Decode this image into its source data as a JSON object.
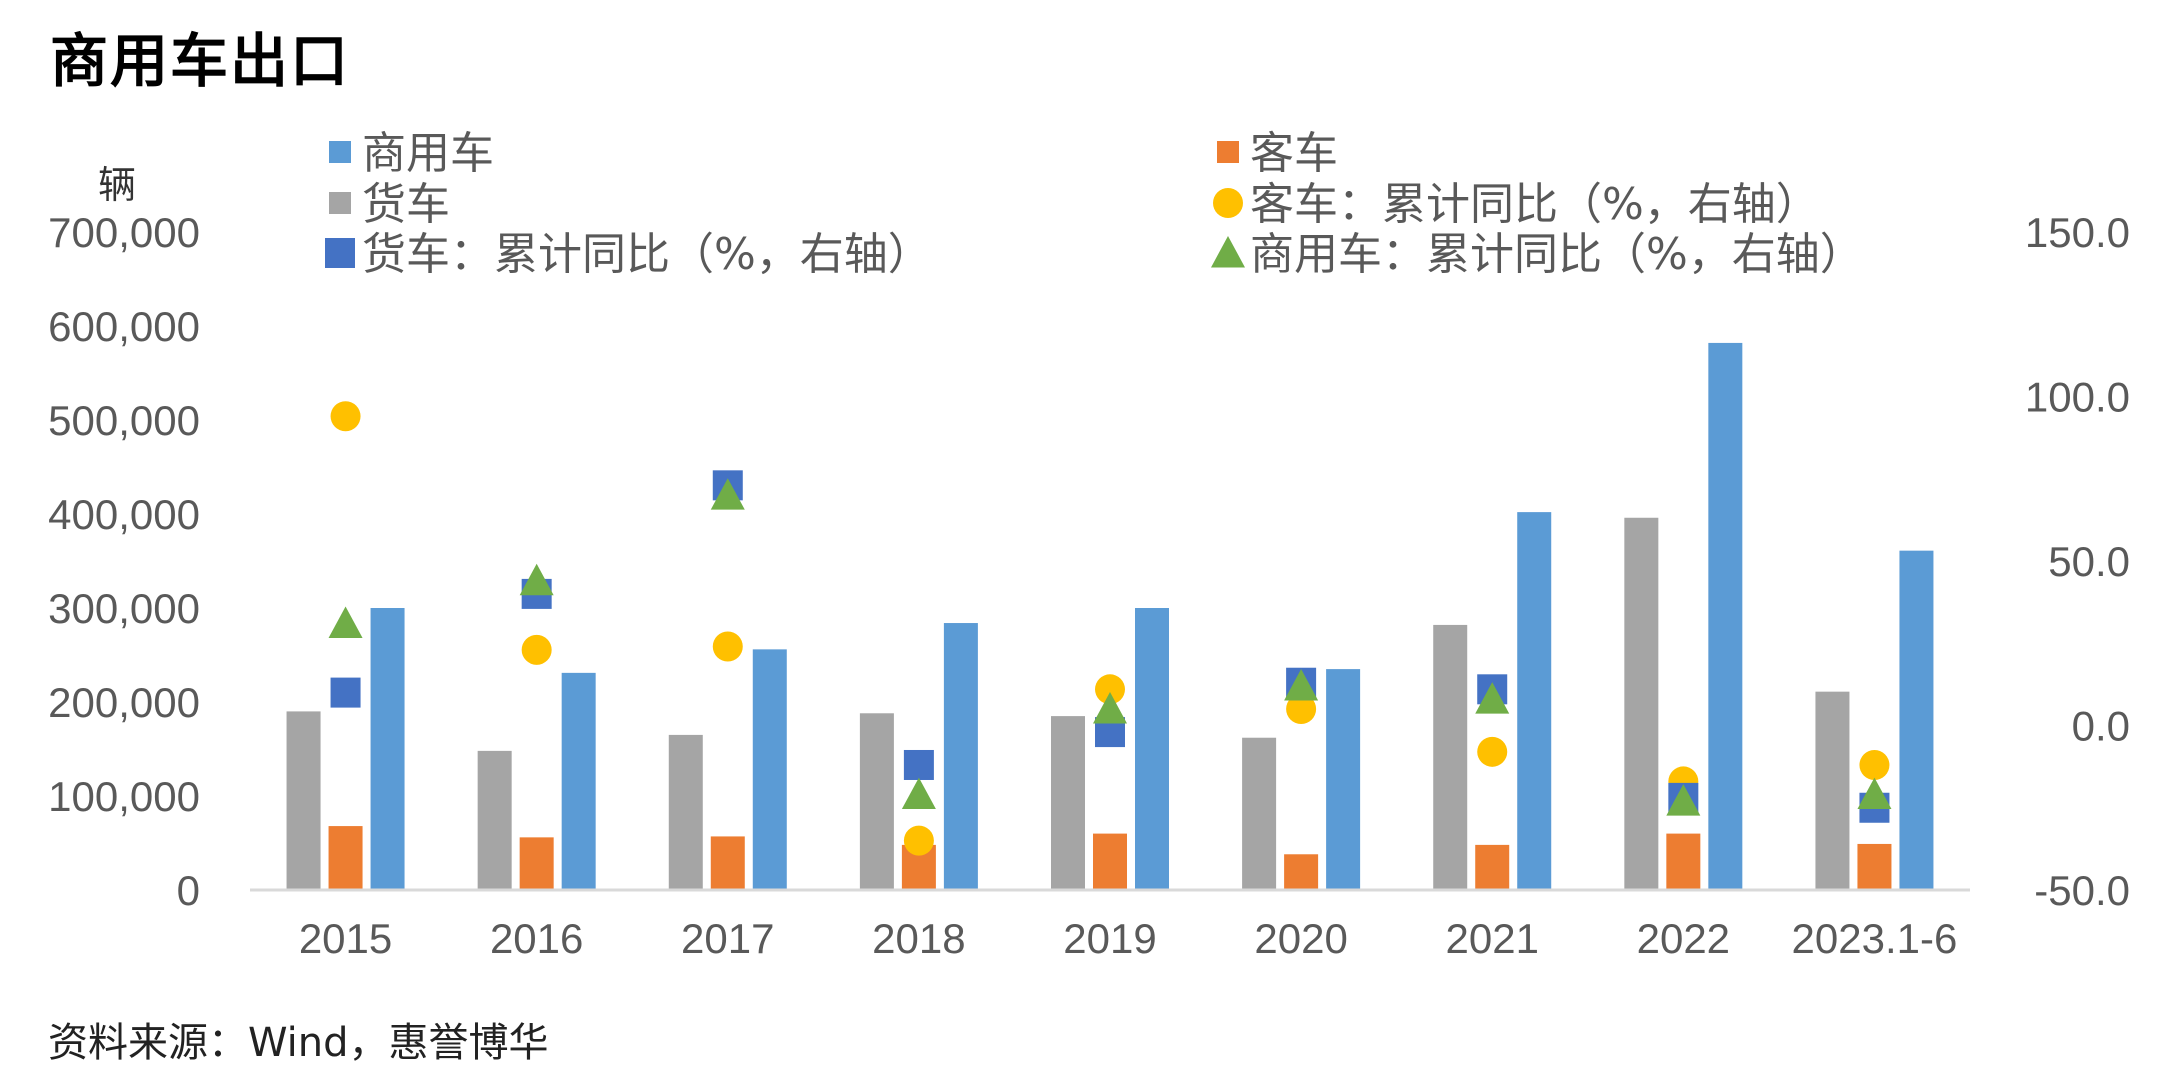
{
  "title": "商用车出口",
  "unit_label": "辆",
  "source": "资料来源：Wind，惠誉博华",
  "chart_data": {
    "type": "bar",
    "categories": [
      "2015",
      "2016",
      "2017",
      "2018",
      "2019",
      "2020",
      "2021",
      "2022",
      "2023.1-6"
    ],
    "bar_series": [
      {
        "name": "货车",
        "color": "#a5a5a5",
        "values": [
          190000,
          148000,
          165000,
          188000,
          185000,
          162000,
          282000,
          396000,
          211000
        ]
      },
      {
        "name": "客车",
        "color": "#ed7d31",
        "values": [
          68000,
          56000,
          57000,
          48000,
          60000,
          38000,
          48000,
          60000,
          49000
        ]
      },
      {
        "name": "商用车",
        "color": "#5b9bd5",
        "values": [
          300000,
          231000,
          256000,
          284000,
          300000,
          235000,
          402000,
          582000,
          361000
        ]
      }
    ],
    "yoy_series": [
      {
        "name": "客车：累计同比（%，右轴）",
        "marker": "circle",
        "color": "#ffc000",
        "values": [
          94,
          23,
          24,
          -35,
          11,
          5,
          -8,
          -17,
          -12
        ]
      },
      {
        "name": "货车：累计同比（%，右轴）",
        "marker": "square",
        "color": "#4472c4",
        "values": [
          10,
          40,
          73,
          -12,
          -2,
          13,
          11,
          -22,
          -25
        ]
      },
      {
        "name": "商用车：累计同比（%，右轴）",
        "marker": "triangle",
        "color": "#70ad47",
        "values": [
          31,
          44,
          70,
          -21,
          5,
          12,
          8,
          -23,
          -21
        ]
      }
    ],
    "legend_order": [
      "商用车",
      "客车",
      "货车",
      "客车：累计同比（%，右轴）",
      "货车：累计同比（%，右轴）",
      "商用车：累计同比（%，右轴）"
    ],
    "left_axis": {
      "ylim": [
        0,
        700000
      ],
      "ticks": [
        "0",
        "100,000",
        "200,000",
        "300,000",
        "400,000",
        "500,000",
        "600,000",
        "700,000"
      ]
    },
    "right_axis": {
      "ylim": [
        -50,
        150
      ],
      "ticks": [
        "-50.0",
        "0.0",
        "50.0",
        "100.0",
        "150.0"
      ]
    },
    "legend_position": "top",
    "grid": false
  }
}
